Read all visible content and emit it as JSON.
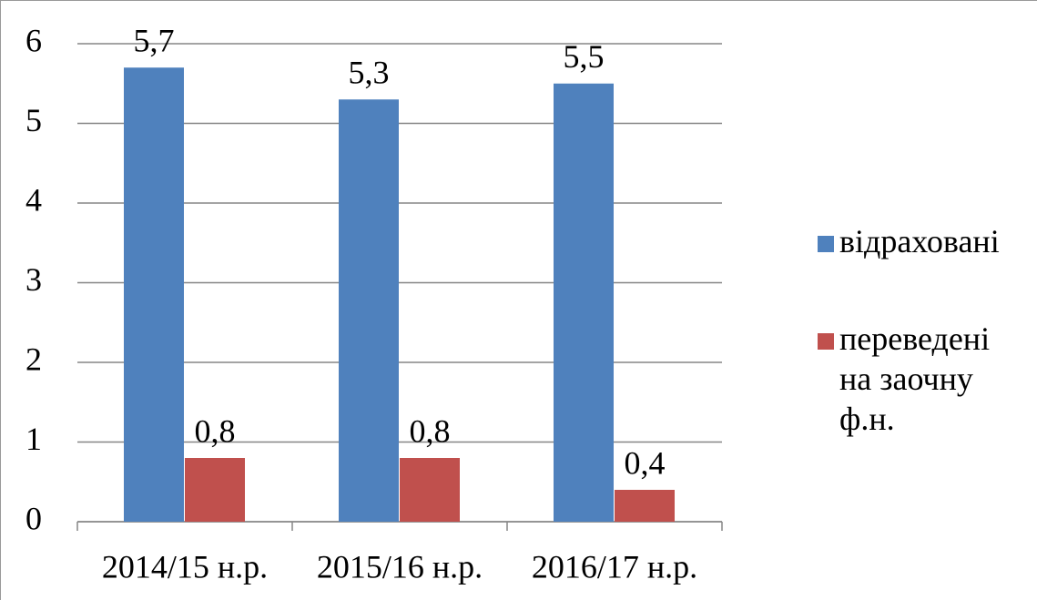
{
  "chart_data": {
    "type": "bar",
    "categories": [
      "2014/15 н.р.",
      "2015/16 н.р.",
      "2016/17 н.р."
    ],
    "series": [
      {
        "name": "відраховані",
        "color": "#4f81bd",
        "values": [
          5.7,
          5.3,
          5.5
        ],
        "value_labels": [
          "5,7",
          "5,3",
          "5,5"
        ]
      },
      {
        "name": "переведені на заочну ф.н.",
        "color": "#c0504d",
        "values": [
          0.8,
          0.8,
          0.4
        ],
        "value_labels": [
          "0,8",
          "0,8",
          "0,4"
        ]
      }
    ],
    "ylim": [
      0,
      6
    ],
    "yticks": [
      0,
      1,
      2,
      3,
      4,
      5,
      6
    ],
    "grid": true,
    "legend": "right"
  }
}
